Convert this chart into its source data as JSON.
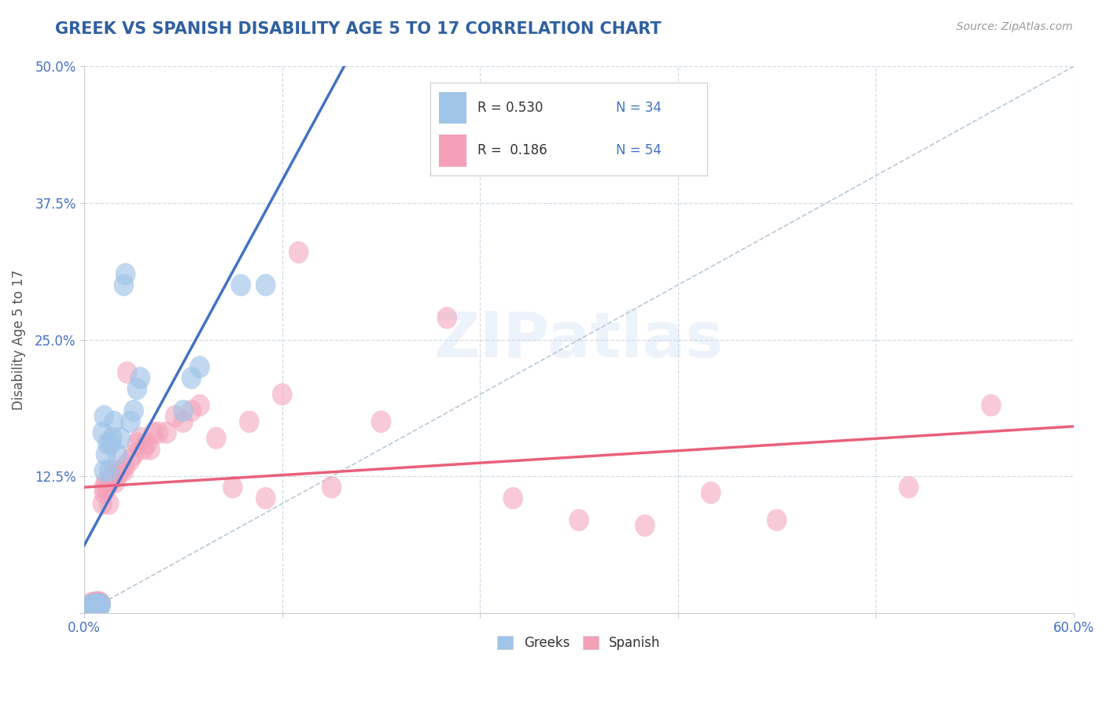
{
  "title": "GREEK VS SPANISH DISABILITY AGE 5 TO 17 CORRELATION CHART",
  "title_color": "#3060a0",
  "ylabel": "Disability Age 5 to 17",
  "source_text": "Source: ZipAtlas.com",
  "xlim": [
    0.0,
    0.6
  ],
  "ylim": [
    0.0,
    0.5
  ],
  "xticks": [
    0.0,
    0.12,
    0.24,
    0.36,
    0.48,
    0.6
  ],
  "yticks": [
    0.0,
    0.125,
    0.25,
    0.375,
    0.5
  ],
  "xtick_labels": [
    "0.0%",
    "",
    "",
    "",
    "",
    "60.0%"
  ],
  "ytick_labels": [
    "",
    "12.5%",
    "25.0%",
    "37.5%",
    "50.0%"
  ],
  "legend_color": "#4472c4",
  "blue_scatter_color": "#a0c4e8",
  "pink_scatter_color": "#f4a0b8",
  "regression_blue_color": "#4472c4",
  "regression_pink_color": "#e8607a",
  "ref_line_color": "#b8c8d8",
  "grid_color": "#d0dce8",
  "background_color": "#ffffff",
  "watermark_text": "ZIPatlas",
  "greek_x": [
    0.002,
    0.003,
    0.004,
    0.005,
    0.006,
    0.006,
    0.007,
    0.008,
    0.008,
    0.009,
    0.01,
    0.01,
    0.011,
    0.012,
    0.012,
    0.013,
    0.014,
    0.015,
    0.016,
    0.017,
    0.018,
    0.02,
    0.022,
    0.024,
    0.025,
    0.028,
    0.03,
    0.032,
    0.034,
    0.06,
    0.065,
    0.07,
    0.095,
    0.11
  ],
  "greek_y": [
    0.005,
    0.006,
    0.007,
    0.005,
    0.006,
    0.008,
    0.006,
    0.007,
    0.008,
    0.006,
    0.007,
    0.008,
    0.165,
    0.18,
    0.13,
    0.145,
    0.155,
    0.13,
    0.155,
    0.16,
    0.175,
    0.145,
    0.16,
    0.3,
    0.31,
    0.175,
    0.185,
    0.205,
    0.215,
    0.185,
    0.215,
    0.225,
    0.3,
    0.3
  ],
  "spanish_x": [
    0.002,
    0.003,
    0.004,
    0.005,
    0.006,
    0.007,
    0.008,
    0.009,
    0.01,
    0.011,
    0.012,
    0.012,
    0.013,
    0.014,
    0.015,
    0.016,
    0.017,
    0.018,
    0.019,
    0.02,
    0.022,
    0.024,
    0.025,
    0.026,
    0.028,
    0.03,
    0.032,
    0.034,
    0.036,
    0.038,
    0.04,
    0.042,
    0.045,
    0.05,
    0.055,
    0.06,
    0.065,
    0.07,
    0.08,
    0.09,
    0.1,
    0.11,
    0.12,
    0.13,
    0.15,
    0.18,
    0.22,
    0.26,
    0.3,
    0.34,
    0.38,
    0.42,
    0.5,
    0.55
  ],
  "spanish_y": [
    0.005,
    0.007,
    0.009,
    0.007,
    0.009,
    0.01,
    0.009,
    0.01,
    0.009,
    0.1,
    0.11,
    0.115,
    0.12,
    0.115,
    0.1,
    0.12,
    0.125,
    0.13,
    0.12,
    0.125,
    0.13,
    0.13,
    0.135,
    0.22,
    0.14,
    0.145,
    0.155,
    0.16,
    0.15,
    0.155,
    0.15,
    0.165,
    0.165,
    0.165,
    0.18,
    0.175,
    0.185,
    0.19,
    0.16,
    0.115,
    0.175,
    0.105,
    0.2,
    0.33,
    0.115,
    0.175,
    0.27,
    0.105,
    0.085,
    0.08,
    0.11,
    0.085,
    0.115,
    0.19
  ]
}
